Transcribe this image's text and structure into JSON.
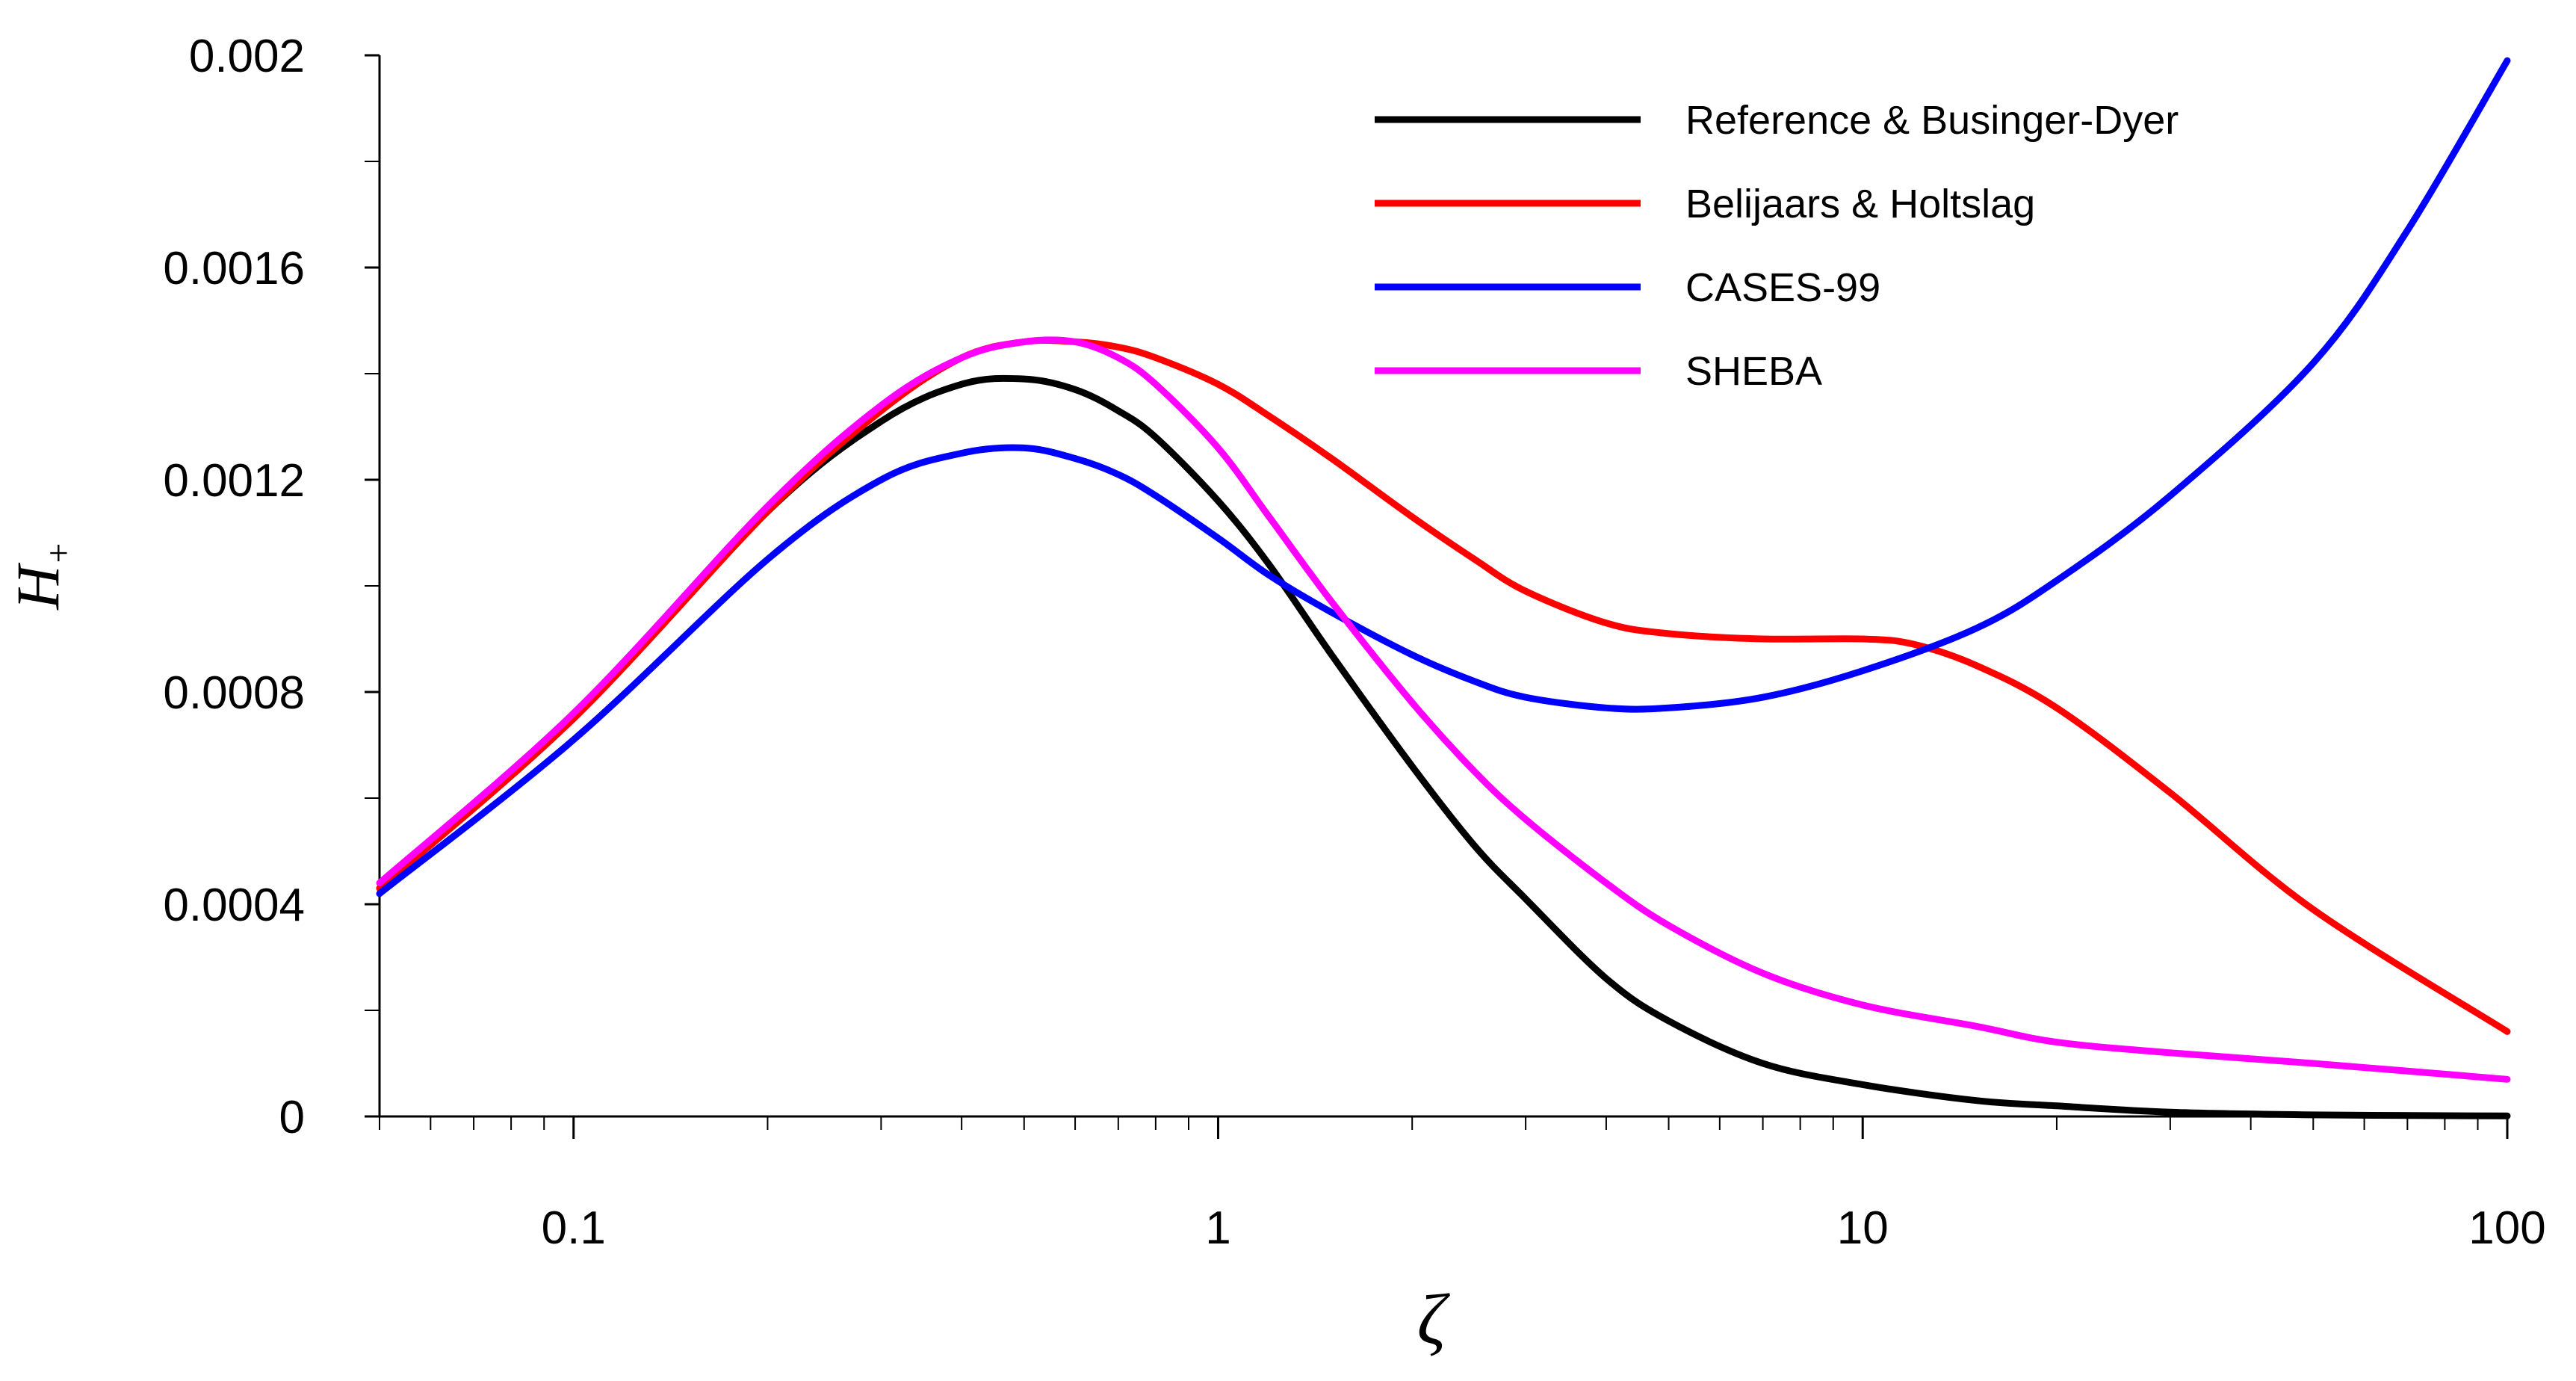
{
  "chart_data": {
    "type": "line",
    "title": "",
    "xlabel": "ζ",
    "ylabel": "H",
    "ylabel_subscript": "+",
    "xscale": "log",
    "xlim": [
      0.05,
      100
    ],
    "ylim": [
      0,
      0.002
    ],
    "grid": false,
    "legend_position": "top-right",
    "x_tick_labels": [
      {
        "value": 0.1,
        "label": "0.1"
      },
      {
        "value": 1,
        "label": "1"
      },
      {
        "value": 10,
        "label": "10"
      },
      {
        "value": 100,
        "label": "100"
      }
    ],
    "y_tick_labels": [
      {
        "value": 0,
        "label": "0"
      },
      {
        "value": 0.0004,
        "label": "0.0004"
      },
      {
        "value": 0.0008,
        "label": "0.0008"
      },
      {
        "value": 0.0012,
        "label": "0.0012"
      },
      {
        "value": 0.0016,
        "label": "0.0016"
      },
      {
        "value": 0.002,
        "label": "0.002"
      }
    ],
    "series": [
      {
        "name": "Reference & Businger-Dyer",
        "color": "#000000",
        "x": [
          0.05,
          0.1,
          0.2,
          0.3,
          0.4,
          0.5,
          0.6,
          0.7,
          0.8,
          1.0,
          1.2,
          1.5,
          2,
          2.5,
          3,
          4,
          5,
          7,
          10,
          15,
          20,
          30,
          50,
          100
        ],
        "y": [
          0.00043,
          0.00075,
          0.00114,
          0.00131,
          0.00138,
          0.00139,
          0.00137,
          0.00133,
          0.00128,
          0.00116,
          0.00104,
          0.00087,
          0.00066,
          0.00051,
          0.00041,
          0.00026,
          0.00018,
          0.0001,
          6e-05,
          3e-05,
          2e-05,
          8e-06,
          3e-06,
          1e-06
        ]
      },
      {
        "name": "Belijaars & Holtslag",
        "color": "#ff0000",
        "x": [
          0.05,
          0.1,
          0.2,
          0.3,
          0.4,
          0.5,
          0.6,
          0.7,
          0.8,
          1.0,
          1.2,
          1.5,
          2,
          2.5,
          3,
          4,
          5,
          7,
          10,
          12,
          15,
          20,
          30,
          50,
          100
        ],
        "y": [
          0.00043,
          0.00075,
          0.00114,
          0.00133,
          0.00143,
          0.00146,
          0.00146,
          0.00145,
          0.00143,
          0.00138,
          0.00132,
          0.00124,
          0.00113,
          0.00105,
          0.00099,
          0.00093,
          0.00091,
          0.0009,
          0.0009,
          0.00089,
          0.00085,
          0.00077,
          0.00061,
          0.00039,
          0.00016
        ]
      },
      {
        "name": "CASES-99",
        "color": "#0000ff",
        "x": [
          0.05,
          0.1,
          0.2,
          0.3,
          0.4,
          0.5,
          0.6,
          0.7,
          0.8,
          1.0,
          1.2,
          1.5,
          2,
          2.5,
          3,
          4,
          5,
          7,
          10,
          15,
          20,
          30,
          50,
          70,
          100
        ],
        "y": [
          0.00042,
          0.00071,
          0.00105,
          0.0012,
          0.00125,
          0.00126,
          0.00124,
          0.00121,
          0.00117,
          0.00109,
          0.00102,
          0.00095,
          0.00087,
          0.00082,
          0.00079,
          0.00077,
          0.00077,
          0.00079,
          0.00084,
          0.00092,
          0.00101,
          0.00117,
          0.00142,
          0.00167,
          0.00199
        ]
      },
      {
        "name": "SHEBA",
        "color": "#ff00ff",
        "x": [
          0.05,
          0.1,
          0.2,
          0.3,
          0.4,
          0.5,
          0.6,
          0.7,
          0.8,
          1.0,
          1.2,
          1.5,
          2,
          2.5,
          3,
          4,
          5,
          7,
          10,
          15,
          20,
          30,
          50,
          100
        ],
        "y": [
          0.00044,
          0.00076,
          0.00115,
          0.00134,
          0.00143,
          0.00146,
          0.00146,
          0.00143,
          0.00138,
          0.00126,
          0.00113,
          0.00097,
          0.00078,
          0.00065,
          0.00056,
          0.00044,
          0.00036,
          0.00027,
          0.00021,
          0.00017,
          0.00014,
          0.00012,
          0.0001,
          7e-05
        ]
      }
    ]
  }
}
